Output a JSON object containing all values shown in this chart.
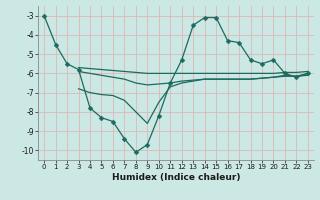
{
  "xlabel": "Humidex (Indice chaleur)",
  "bg_color": "#cce8e4",
  "grid_color": "#ddb8b8",
  "line_color": "#1a6b60",
  "xlim": [
    -0.5,
    23.5
  ],
  "ylim": [
    -10.5,
    -2.5
  ],
  "yticks": [
    -10,
    -9,
    -8,
    -7,
    -6,
    -5,
    -4,
    -3
  ],
  "xticks": [
    0,
    1,
    2,
    3,
    4,
    5,
    6,
    7,
    8,
    9,
    10,
    11,
    12,
    13,
    14,
    15,
    16,
    17,
    18,
    19,
    20,
    21,
    22,
    23
  ],
  "line1_x": [
    0,
    1,
    2,
    3,
    4,
    5,
    6,
    7,
    8,
    9,
    10,
    11,
    12,
    13,
    14,
    15,
    16,
    17,
    18,
    19,
    20,
    21,
    22,
    23
  ],
  "line1_y": [
    -3.0,
    -4.5,
    -5.5,
    -5.8,
    -7.8,
    -8.3,
    -8.5,
    -9.4,
    -10.1,
    -9.7,
    -8.2,
    -6.5,
    -5.3,
    -3.5,
    -3.1,
    -3.1,
    -4.3,
    -4.4,
    -5.3,
    -5.5,
    -5.3,
    -6.0,
    -6.2,
    -6.0
  ],
  "line2_x": [
    3,
    4,
    5,
    6,
    7,
    8,
    9,
    10,
    11,
    12,
    13,
    14,
    15,
    16,
    17,
    18,
    19,
    20,
    21,
    22,
    23
  ],
  "line2_y": [
    -5.7,
    -5.75,
    -5.8,
    -5.85,
    -5.9,
    -5.95,
    -6.0,
    -6.0,
    -6.0,
    -6.0,
    -6.0,
    -6.0,
    -6.0,
    -6.0,
    -6.0,
    -6.0,
    -6.0,
    -6.0,
    -5.95,
    -5.95,
    -5.9
  ],
  "line3_x": [
    3,
    4,
    5,
    6,
    7,
    8,
    9,
    10,
    11,
    12,
    13,
    14,
    15,
    16,
    17,
    18,
    19,
    20,
    21,
    22,
    23
  ],
  "line3_y": [
    -5.9,
    -6.0,
    -6.1,
    -6.2,
    -6.3,
    -6.5,
    -6.6,
    -6.55,
    -6.5,
    -6.4,
    -6.35,
    -6.3,
    -6.3,
    -6.3,
    -6.3,
    -6.3,
    -6.25,
    -6.2,
    -6.15,
    -6.15,
    -6.1
  ],
  "line4_x": [
    3,
    4,
    5,
    6,
    7,
    8,
    9,
    10,
    11,
    12,
    13,
    14,
    15,
    16,
    17,
    18,
    19,
    20,
    21,
    22,
    23
  ],
  "line4_y": [
    -6.8,
    -7.0,
    -7.1,
    -7.15,
    -7.4,
    -8.0,
    -8.6,
    -7.5,
    -6.7,
    -6.5,
    -6.4,
    -6.3,
    -6.3,
    -6.3,
    -6.3,
    -6.3,
    -6.25,
    -6.2,
    -6.1,
    -6.15,
    -6.0
  ]
}
